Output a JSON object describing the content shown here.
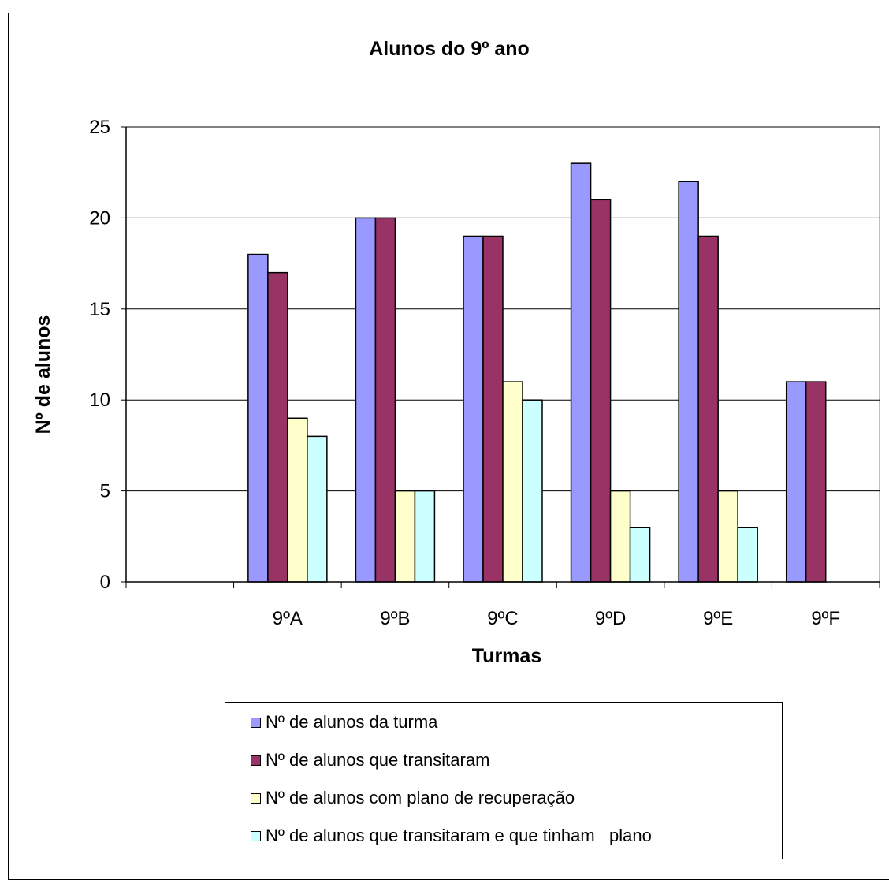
{
  "chart_data": {
    "type": "bar",
    "title": "Alunos do 9º ano",
    "xlabel": "Turmas",
    "ylabel": "Nº de alunos",
    "categories": [
      "",
      "9ºA",
      "9ºB",
      "9ºC",
      "9ºD",
      "9ºE",
      "9ºF"
    ],
    "ylim": [
      0,
      25
    ],
    "yticks": [
      0,
      5,
      10,
      15,
      20,
      25
    ],
    "grid": true,
    "legend_position": "bottom",
    "series": [
      {
        "name": "Nº de alunos da turma",
        "color": "#9999FF",
        "values": [
          null,
          18,
          20,
          19,
          23,
          22,
          11
        ]
      },
      {
        "name": "Nº de alunos que transitaram",
        "color": "#993366",
        "values": [
          null,
          17,
          20,
          19,
          21,
          19,
          11
        ]
      },
      {
        "name": "Nº de alunos com plano de recuperação",
        "color": "#FFFFCC",
        "values": [
          null,
          9,
          5,
          11,
          5,
          5,
          null
        ]
      },
      {
        "name": "Nº de alunos que transitaram e que tinham   plano",
        "color": "#CCFFFF",
        "values": [
          null,
          8,
          5,
          10,
          3,
          3,
          null
        ]
      }
    ]
  }
}
